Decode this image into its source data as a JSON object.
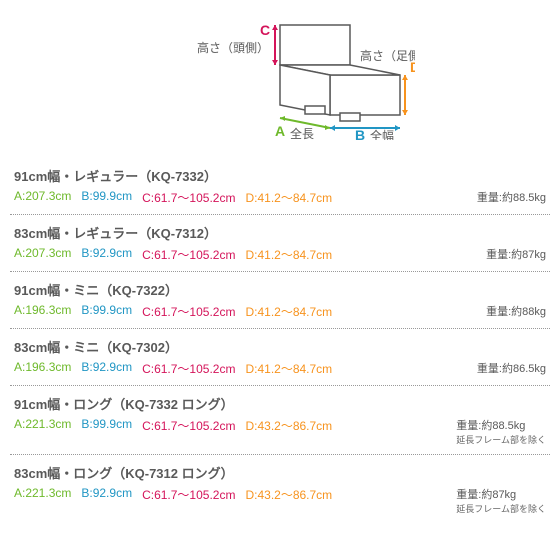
{
  "colors": {
    "A": "#6eb92b",
    "B": "#2196c4",
    "C": "#d4145a",
    "D": "#f7931e",
    "text": "#595959"
  },
  "diagram": {
    "labelC": "C",
    "labelC_text": "高さ（頭側）",
    "labelD": "D",
    "labelD_text": "高さ（足側）",
    "labelA": "A",
    "labelA_text": "全長",
    "labelB": "B",
    "labelB_text": "全幅"
  },
  "rows": [
    {
      "title": "91cm幅・レギュラー（KQ-7332）",
      "A": "A:207.3cm",
      "B": "B:99.9cm",
      "C": "C:61.7～105.2cm",
      "D": "D:41.2～84.7cm",
      "weight": "重量:約88.5kg",
      "note": ""
    },
    {
      "title": "83cm幅・レギュラー（KQ-7312）",
      "A": "A:207.3cm",
      "B": "B:92.9cm",
      "C": "C:61.7～105.2cm",
      "D": "D:41.2～84.7cm",
      "weight": "重量:約87kg",
      "note": ""
    },
    {
      "title": "91cm幅・ミニ（KQ-7322）",
      "A": "A:196.3cm",
      "B": "B:99.9cm",
      "C": "C:61.7～105.2cm",
      "D": "D:41.2～84.7cm",
      "weight": "重量:約88kg",
      "note": ""
    },
    {
      "title": "83cm幅・ミニ（KQ-7302）",
      "A": "A:196.3cm",
      "B": "B:92.9cm",
      "C": "C:61.7～105.2cm",
      "D": "D:41.2～84.7cm",
      "weight": "重量:約86.5kg",
      "note": ""
    },
    {
      "title": "91cm幅・ロング（KQ-7332 ロング）",
      "A": "A:221.3cm",
      "B": "B:99.9cm",
      "C": "C:61.7～105.2cm",
      "D": "D:43.2～86.7cm",
      "weight": "重量:約88.5kg",
      "note": "延長フレーム部を除く"
    },
    {
      "title": "83cm幅・ロング（KQ-7312 ロング）",
      "A": "A:221.3cm",
      "B": "B:92.9cm",
      "C": "C:61.7～105.2cm",
      "D": "D:43.2～86.7cm",
      "weight": "重量:約87kg",
      "note": "延長フレーム部を除く"
    }
  ]
}
